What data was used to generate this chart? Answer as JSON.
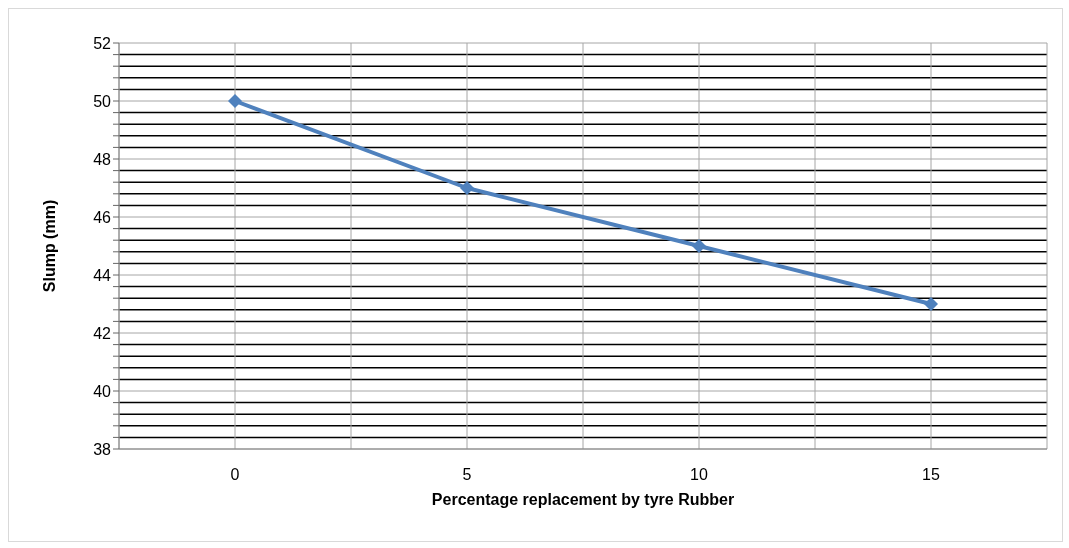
{
  "chart_data": {
    "type": "line",
    "xlabel": "Percentage replacement by tyre Rubber",
    "ylabel": "Slump (mm)",
    "categories": [
      "0",
      "5",
      "10",
      "15"
    ],
    "series": [
      {
        "color": "#4f81bd",
        "values": [
          50,
          47,
          45,
          43
        ]
      }
    ],
    "ylim": [
      38,
      52
    ],
    "yticks": [
      38,
      {
        "value": 38.4,
        "label": null
      },
      {
        "value": 38.8,
        "label": null
      },
      {
        "value": 39.2,
        "label": null
      },
      {
        "value": 39.6,
        "label": null
      },
      40,
      {
        "value": 40.4,
        "label": null
      },
      {
        "value": 40.8,
        "label": null
      },
      {
        "value": 41.2,
        "label": null
      },
      {
        "value": 41.6,
        "label": null
      },
      42,
      {
        "value": 42.4,
        "label": null
      },
      {
        "value": 42.8,
        "label": null
      },
      {
        "value": 43.2,
        "label": null
      },
      {
        "value": 43.6,
        "label": null
      },
      44,
      {
        "value": 44.4,
        "label": null
      },
      {
        "value": 44.8,
        "label": null
      },
      {
        "value": 45.2,
        "label": null
      },
      {
        "value": 45.6,
        "label": null
      },
      46,
      {
        "value": 46.4,
        "label": null
      },
      {
        "value": 46.8,
        "label": null
      },
      {
        "value": 47.2,
        "label": null
      },
      {
        "value": 47.6,
        "label": null
      },
      48,
      {
        "value": 48.4,
        "label": null
      },
      {
        "value": 48.8,
        "label": null
      },
      {
        "value": 49.2,
        "label": null
      },
      {
        "value": 49.6,
        "label": null
      },
      50,
      {
        "value": 50.4,
        "label": null
      },
      {
        "value": 50.8,
        "label": null
      },
      {
        "value": 51.2,
        "label": null
      },
      {
        "value": 51.6,
        "label": null
      },
      52
    ],
    "grid": true,
    "marker": "diamond",
    "line_style": "solid"
  }
}
